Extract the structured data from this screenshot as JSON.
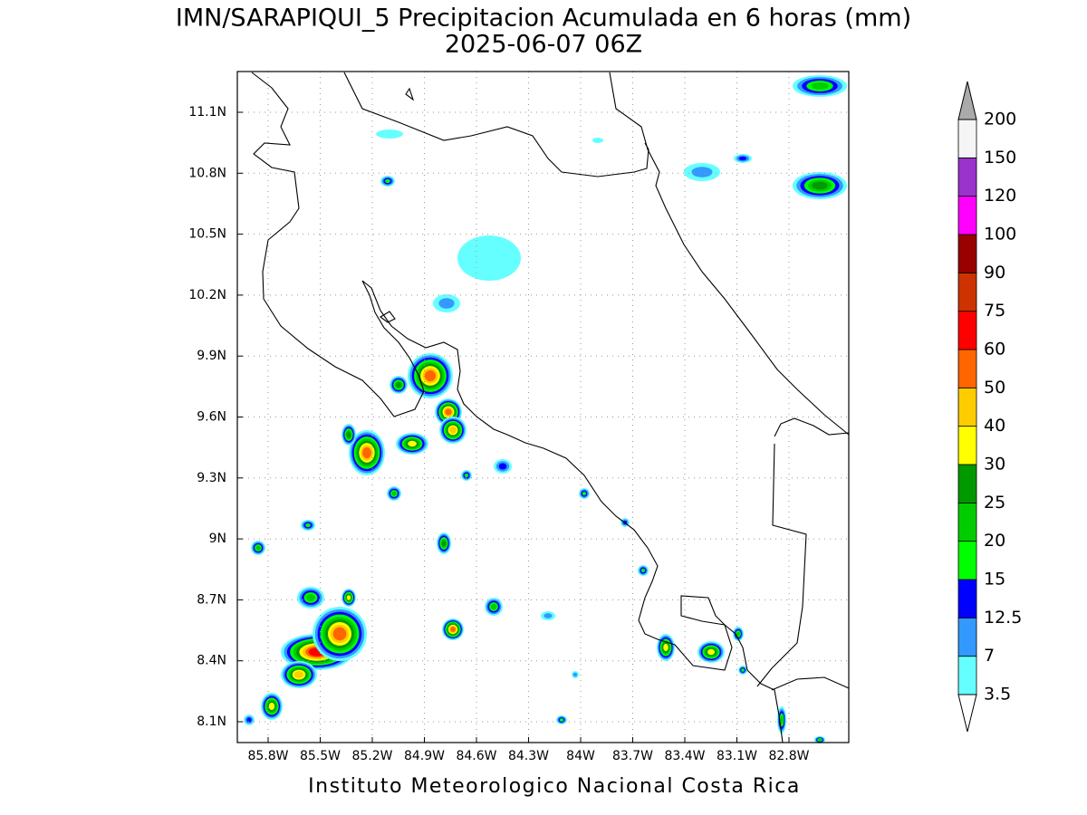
{
  "title": "IMN/SARAPIQUI_5 Precipitacion Acumulada en 6 horas (mm)",
  "subtitle": "2025-06-07 06Z",
  "footer": "Instituto Meteorologico Nacional Costa Rica",
  "map": {
    "lon_labels": [
      "85.8W",
      "85.5W",
      "85.2W",
      "84.9W",
      "84.6W",
      "84.3W",
      "84W",
      "83.7W",
      "83.4W",
      "83.1W",
      "82.8W"
    ],
    "lat_labels": [
      "11.1N",
      "10.8N",
      "10.5N",
      "10.2N",
      "9.9N",
      "9.6N",
      "9.3N",
      "9N",
      "8.7N",
      "8.4N",
      "8.1N"
    ]
  },
  "colorbar": {
    "levels": [
      3.5,
      7,
      12.5,
      15,
      20,
      25,
      30,
      40,
      50,
      60,
      75,
      90,
      100,
      120,
      150,
      200
    ],
    "colors": [
      "#66ffff",
      "#3399ff",
      "#0000ff",
      "#00ff00",
      "#00cc00",
      "#009900",
      "#ffff00",
      "#ffcc00",
      "#ff6600",
      "#ff0000",
      "#cc3300",
      "#990000",
      "#ff00ff",
      "#9933cc",
      "#f5f5f5"
    ],
    "under_color": "#ffffff",
    "over_color": "#aaaaaa"
  }
}
